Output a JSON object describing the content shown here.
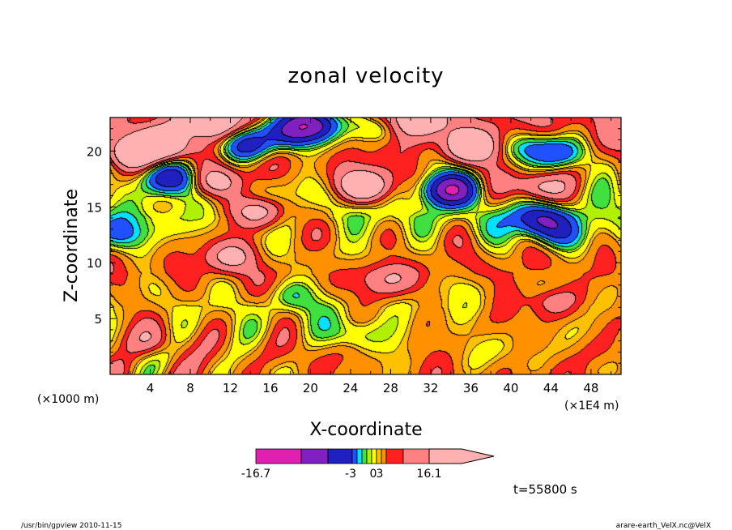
{
  "chart_data": {
    "type": "heatmap",
    "title": "zonal velocity",
    "xlabel": "X-coordinate",
    "ylabel": "Z-coordinate",
    "x_unit_left": "(×1000 m)",
    "x_unit_right": "(×1E4 m)",
    "xlim": [
      0,
      51
    ],
    "ylim": [
      0,
      23
    ],
    "x_ticks": [
      "4",
      "8",
      "12",
      "16",
      "20",
      "24",
      "28",
      "32",
      "36",
      "40",
      "44",
      "48"
    ],
    "y_ticks": [
      "5",
      "10",
      "15",
      "20"
    ],
    "colorbar": {
      "tick_labels": [
        "-16.7",
        "-3",
        "0",
        "3",
        "16.1"
      ],
      "vmin": -16.7,
      "vmax": 16.1,
      "colors": [
        "#e020b0",
        "#8020c0",
        "#2020c0",
        "#2050ff",
        "#00e0ff",
        "#40e040",
        "#b0f000",
        "#ffff00",
        "#ffc000",
        "#ff9000",
        "#ff2020",
        "#ff8080",
        "#ffb0b0"
      ]
    },
    "features": [
      {
        "x": 18,
        "z": 21.5,
        "v": -8
      },
      {
        "x": 20,
        "z": 22.5,
        "v": -12
      },
      {
        "x": 13.5,
        "z": 20.5,
        "v": -8
      },
      {
        "x": 6,
        "z": 17.5,
        "v": -9
      },
      {
        "x": 34,
        "z": 16.5,
        "v": -12
      },
      {
        "x": 43,
        "z": 13.8,
        "v": -8
      },
      {
        "x": 45,
        "z": 12.5,
        "v": -4
      },
      {
        "x": 42,
        "z": 20.3,
        "v": -5
      },
      {
        "x": 45,
        "z": 19.8,
        "v": -5
      },
      {
        "x": 1,
        "z": 12.5,
        "v": -4
      },
      {
        "x": 24.5,
        "z": 3.5,
        "v": -3
      },
      {
        "x": 18,
        "z": 7,
        "v": -3
      },
      {
        "x": 26.5,
        "z": 22,
        "v": -4
      },
      {
        "x": 5.5,
        "z": 20.5,
        "v": 8
      },
      {
        "x": 2,
        "z": 19.8,
        "v": 6
      },
      {
        "x": 25.5,
        "z": 16.8,
        "v": 9
      },
      {
        "x": 15,
        "z": 14.5,
        "v": 7
      },
      {
        "x": 36,
        "z": 20.3,
        "v": 7
      },
      {
        "x": 42.5,
        "z": 16.8,
        "v": 6
      },
      {
        "x": 12,
        "z": 10.5,
        "v": 5
      },
      {
        "x": 44,
        "z": 6.5,
        "v": 4
      },
      {
        "x": 10.5,
        "z": 17.2,
        "v": 6
      },
      {
        "x": 10,
        "z": 22.5,
        "v": 7
      },
      {
        "x": 30.5,
        "z": 22.5,
        "v": 6
      },
      {
        "x": 4,
        "z": 3,
        "v": 3
      },
      {
        "x": 28,
        "z": 8.5,
        "v": 3.5
      },
      {
        "x": 49,
        "z": 2,
        "v": 1
      }
    ],
    "background_profile": [
      {
        "z": 0,
        "v": 1.6
      },
      {
        "z": 3,
        "v": 1.2
      },
      {
        "z": 6,
        "v": 0.7
      },
      {
        "z": 9,
        "v": 1.8
      },
      {
        "z": 12,
        "v": 1.0
      },
      {
        "z": 14,
        "v": -0.3
      },
      {
        "z": 16,
        "v": 0.3
      },
      {
        "z": 18,
        "v": 1.5
      },
      {
        "z": 21,
        "v": 2.5
      },
      {
        "z": 23,
        "v": 3.0
      }
    ]
  },
  "annotations": {
    "time": "t=55800 s",
    "footer_left": "/usr/bin/gpview  2010-11-15",
    "footer_right": "arare-earth_VelX.nc@VelX"
  }
}
